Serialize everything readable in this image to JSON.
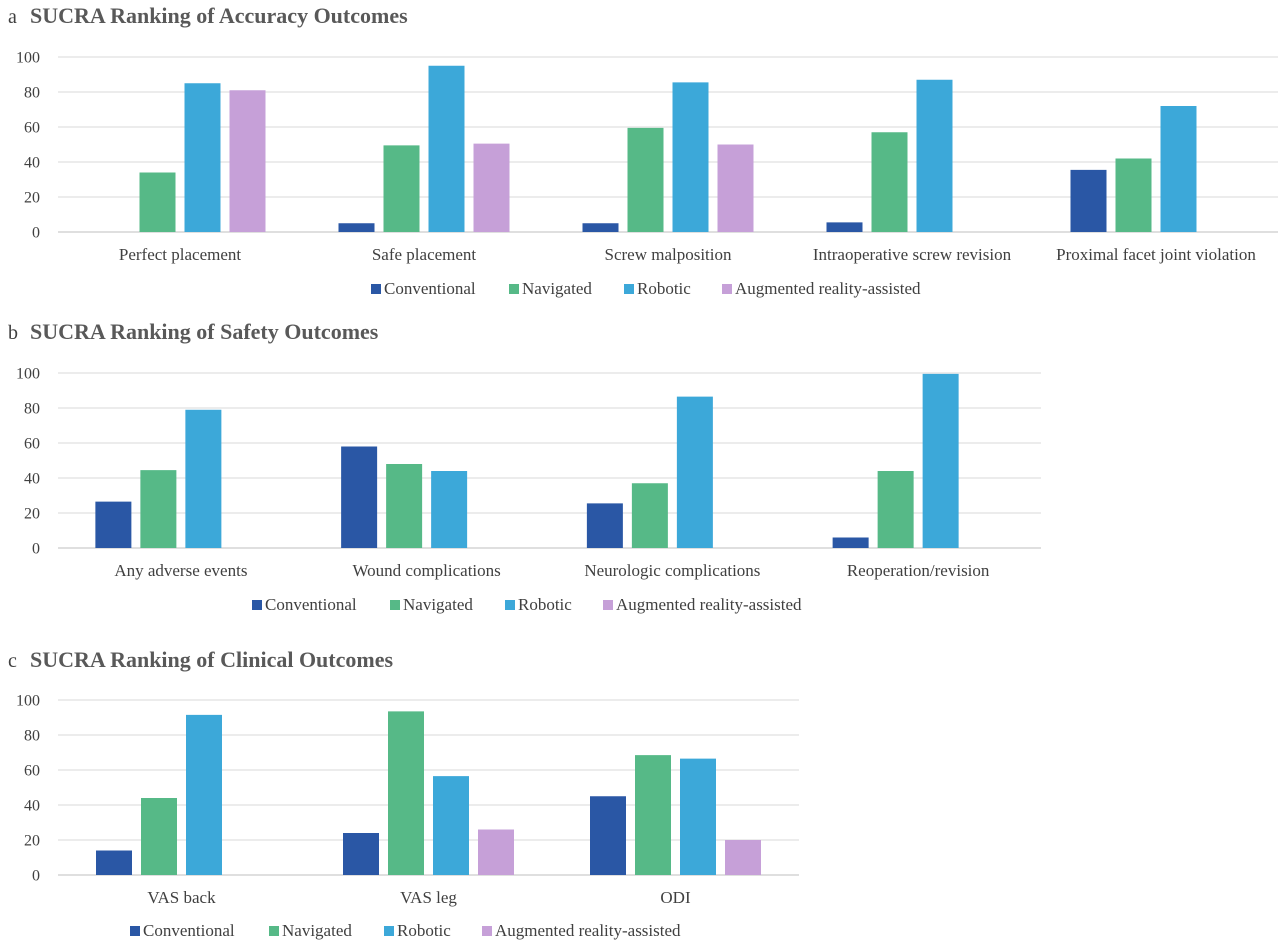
{
  "figure": {
    "series_names": [
      "Conventional",
      "Navigated",
      "Robotic",
      "Augmented reality-assisted"
    ],
    "colors": {
      "Conventional": "#2a57a5",
      "Navigated": "#56b987",
      "Robotic": "#3ca8d9",
      "Augmented reality-assisted": "#c6a0d8"
    }
  },
  "chart_data": [
    {
      "type": "bar",
      "letter": "a",
      "title": "SUCRA Ranking of Accuracy Outcomes",
      "ylim": [
        0,
        100
      ],
      "yticks": [
        0,
        20,
        40,
        60,
        80,
        100
      ],
      "grid": true,
      "legend": "bottom",
      "categories": [
        "Perfect placement",
        "Safe placement",
        "Screw malposition",
        "Intraoperative screw revision",
        "Proximal facet joint violation"
      ],
      "series": [
        {
          "name": "Conventional",
          "values": [
            null,
            5,
            5,
            5.5,
            35.5
          ]
        },
        {
          "name": "Navigated",
          "values": [
            34,
            49.5,
            59.5,
            57,
            42
          ]
        },
        {
          "name": "Robotic",
          "values": [
            85,
            95,
            85.5,
            87,
            72
          ]
        },
        {
          "name": "Augmented reality-assisted",
          "values": [
            81,
            50.5,
            50,
            null,
            null
          ]
        }
      ]
    },
    {
      "type": "bar",
      "letter": "b",
      "title": "SUCRA Ranking of Safety Outcomes",
      "ylim": [
        0,
        100
      ],
      "yticks": [
        0,
        20,
        40,
        60,
        80,
        100
      ],
      "grid": true,
      "legend": "bottom",
      "categories": [
        "Any adverse events",
        "Wound complications",
        "Neurologic complications",
        "Reoperation/revision"
      ],
      "series": [
        {
          "name": "Conventional",
          "values": [
            26.5,
            58,
            25.5,
            6
          ]
        },
        {
          "name": "Navigated",
          "values": [
            44.5,
            48,
            37,
            44
          ]
        },
        {
          "name": "Robotic",
          "values": [
            79,
            44,
            86.5,
            99.5
          ]
        },
        {
          "name": "Augmented reality-assisted",
          "values": [
            null,
            null,
            null,
            null
          ]
        }
      ]
    },
    {
      "type": "bar",
      "letter": "c",
      "title": "SUCRA Ranking of Clinical Outcomes",
      "ylim": [
        0,
        100
      ],
      "yticks": [
        0,
        20,
        40,
        60,
        80,
        100
      ],
      "grid": true,
      "legend": "bottom",
      "categories": [
        "VAS back",
        "VAS leg",
        "ODI"
      ],
      "series": [
        {
          "name": "Conventional",
          "values": [
            14,
            24,
            45
          ]
        },
        {
          "name": "Navigated",
          "values": [
            44,
            93.5,
            68.5
          ]
        },
        {
          "name": "Robotic",
          "values": [
            91.5,
            56.5,
            66.5
          ]
        },
        {
          "name": "Augmented reality-assisted",
          "values": [
            null,
            26,
            20
          ]
        }
      ]
    }
  ]
}
